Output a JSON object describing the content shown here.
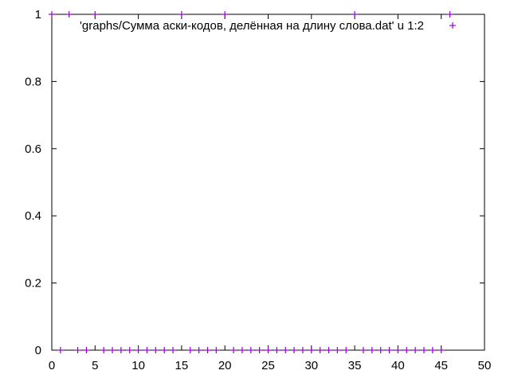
{
  "chart_data": {
    "type": "scatter",
    "title": "",
    "xlabel": "",
    "ylabel": "",
    "xlim": [
      0,
      50
    ],
    "ylim": [
      0,
      1
    ],
    "grid": false,
    "legend_position": "top-left",
    "x_ticks": [
      "0",
      "5",
      "10",
      "15",
      "20",
      "25",
      "30",
      "35",
      "40",
      "45",
      "50"
    ],
    "y_ticks": [
      "0",
      "0.2",
      "0.4",
      "0.6",
      "0.8",
      "1"
    ],
    "series": [
      {
        "name": "'graphs/Сумма аски-кодов, делённая на длину слова.dat' u 1:2",
        "color": "#9400d3",
        "marker": "plus",
        "points": [
          [
            0,
            1
          ],
          [
            1,
            0
          ],
          [
            2,
            1
          ],
          [
            3,
            0
          ],
          [
            4,
            0
          ],
          [
            5,
            1
          ],
          [
            6,
            0
          ],
          [
            7,
            0
          ],
          [
            8,
            0
          ],
          [
            9,
            0
          ],
          [
            10,
            0
          ],
          [
            11,
            0
          ],
          [
            12,
            0
          ],
          [
            13,
            0
          ],
          [
            14,
            0
          ],
          [
            15,
            1
          ],
          [
            16,
            0
          ],
          [
            17,
            0
          ],
          [
            18,
            0
          ],
          [
            19,
            0
          ],
          [
            20,
            1
          ],
          [
            21,
            0
          ],
          [
            22,
            0
          ],
          [
            23,
            0
          ],
          [
            24,
            0
          ],
          [
            25,
            0
          ],
          [
            26,
            0
          ],
          [
            27,
            0
          ],
          [
            28,
            0
          ],
          [
            29,
            0
          ],
          [
            30,
            0
          ],
          [
            31,
            0
          ],
          [
            32,
            0
          ],
          [
            33,
            0
          ],
          [
            34,
            0
          ],
          [
            35,
            1
          ],
          [
            36,
            0
          ],
          [
            37,
            0
          ],
          [
            38,
            0
          ],
          [
            39,
            0
          ],
          [
            40,
            0
          ],
          [
            41,
            0
          ],
          [
            42,
            0
          ],
          [
            43,
            0
          ],
          [
            44,
            0
          ],
          [
            45,
            0
          ],
          [
            46,
            1
          ]
        ]
      }
    ]
  }
}
